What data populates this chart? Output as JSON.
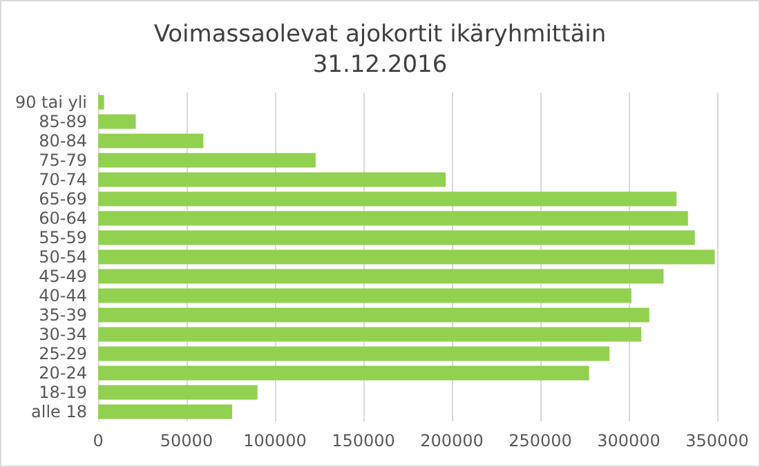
{
  "chart_data": {
    "type": "bar",
    "orientation": "horizontal",
    "title": "Voimassaolevat ajokortit ikäryhmittäin\n31.12.2016",
    "categories": [
      "90 tai yli",
      "85-89",
      "80-84",
      "75-79",
      "70-74",
      "65-69",
      "60-64",
      "55-59",
      "50-54",
      "45-49",
      "40-44",
      "35-39",
      "30-34",
      "25-29",
      "20-24",
      "18-19",
      "alle 18"
    ],
    "values": [
      3400,
      21300,
      59500,
      123000,
      196500,
      327000,
      333500,
      337400,
      348600,
      319700,
      301500,
      311600,
      307100,
      289100,
      277600,
      90100,
      75800
    ],
    "color": "#92d050",
    "xlim": [
      0,
      350000
    ],
    "xticks": [
      0,
      50000,
      100000,
      150000,
      200000,
      250000,
      300000,
      350000
    ],
    "grid": "x"
  }
}
